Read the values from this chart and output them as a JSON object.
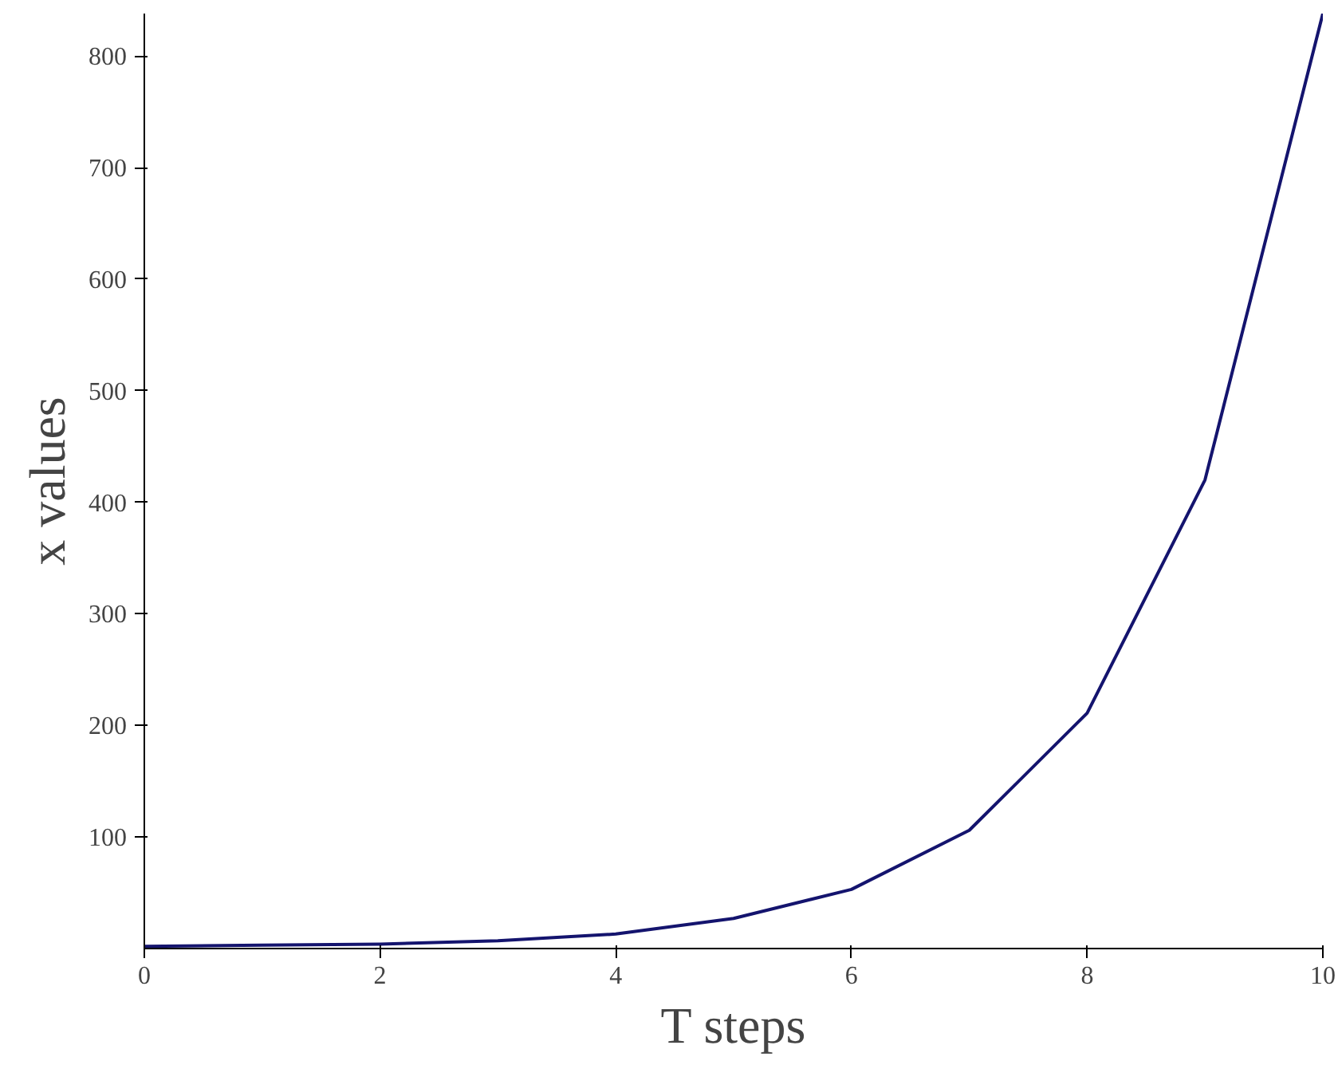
{
  "chart_data": {
    "type": "line",
    "xlabel": "T steps",
    "ylabel": "x values",
    "x": [
      0,
      1,
      2,
      3,
      4,
      5,
      6,
      7,
      8,
      9,
      10
    ],
    "series": [
      {
        "color": "#14146e",
        "values": [
          2,
          3,
          4,
          7,
          13,
          27,
          53,
          106,
          211,
          420,
          838
        ]
      }
    ],
    "xlim": [
      0,
      10
    ],
    "ylim": [
      0,
      838
    ],
    "xticks": [
      0,
      2,
      4,
      6,
      8,
      10
    ],
    "yticks": [
      100,
      200,
      300,
      400,
      500,
      600,
      700,
      800
    ],
    "grid": false,
    "marker": "none",
    "line_style": "solid"
  }
}
